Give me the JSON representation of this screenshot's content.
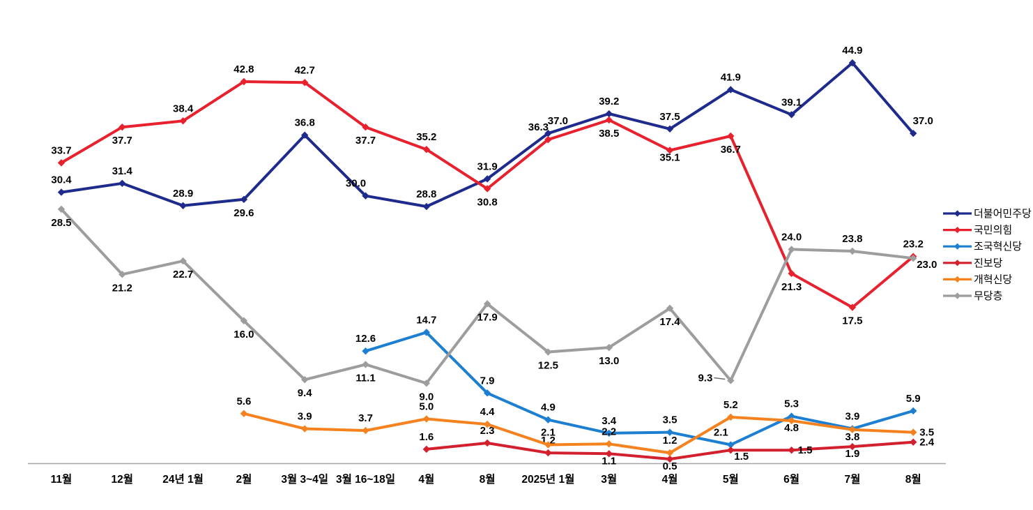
{
  "chart_data": {
    "type": "line",
    "title": "",
    "xlabel": "",
    "ylabel": "",
    "ylim": [
      0,
      47
    ],
    "grid": false,
    "legend_position": "right",
    "axis_color": "#A6A6A6",
    "label_color": "#000000",
    "categories": [
      "11월",
      "12월",
      "24년 1월",
      "2월",
      "3월 3~4일",
      "3월 16~18일",
      "4월",
      "8월",
      "2025년 1월",
      "3월",
      "4월",
      "5월",
      "6월",
      "7월",
      "8월"
    ],
    "series": [
      {
        "name": "더불어민주당",
        "color": "#1E2B8C",
        "values": [
          30.4,
          31.4,
          28.9,
          29.6,
          36.8,
          30.0,
          28.8,
          31.9,
          37.0,
          39.2,
          37.5,
          41.9,
          39.1,
          44.9,
          37.0
        ],
        "label_pos": [
          "a",
          "a",
          "a",
          "b",
          "a",
          "al",
          "a",
          "a",
          "ar",
          "a",
          "a",
          "a",
          "a",
          "a",
          "ar"
        ]
      },
      {
        "name": "국민의힘",
        "color": "#E8212E",
        "values": [
          33.7,
          37.7,
          38.4,
          42.8,
          42.7,
          37.7,
          35.2,
          30.8,
          36.3,
          38.5,
          35.1,
          36.7,
          21.3,
          17.5,
          23.2
        ],
        "label_pos": [
          "a",
          "b",
          "a",
          "a",
          "a",
          "b",
          "a",
          "b",
          "al",
          "b",
          "bs",
          "b",
          "b",
          "b",
          "a"
        ]
      },
      {
        "name": "조국혁신당",
        "color": "#1C7FD1",
        "values": [
          null,
          null,
          null,
          null,
          null,
          12.6,
          14.7,
          7.9,
          4.9,
          3.4,
          3.5,
          2.1,
          5.3,
          3.9,
          5.9
        ],
        "label_pos": [
          null,
          null,
          null,
          null,
          null,
          "a",
          "a",
          "a",
          "a",
          "a",
          "a",
          "al",
          "a",
          "a",
          "a"
        ]
      },
      {
        "name": "진보당",
        "color": "#D2202E",
        "values": [
          null,
          null,
          null,
          null,
          null,
          null,
          1.6,
          2.3,
          1.2,
          1.1,
          0.5,
          1.5,
          1.5,
          1.9,
          2.4
        ],
        "label_pos": [
          null,
          null,
          null,
          null,
          null,
          null,
          "a",
          "a",
          "a",
          "bs",
          "bs",
          "br",
          "r",
          "bs",
          "r"
        ]
      },
      {
        "name": "개혁신당",
        "color": "#F5821F",
        "values": [
          null,
          null,
          null,
          5.6,
          3.9,
          3.7,
          5.0,
          4.4,
          2.1,
          2.2,
          1.2,
          5.2,
          4.8,
          3.8,
          3.5
        ],
        "label_pos": [
          null,
          null,
          null,
          "a",
          "a",
          "a",
          "a",
          "a",
          "a",
          "a",
          "a",
          "a",
          "bs",
          "bs",
          "r"
        ]
      },
      {
        "name": "무당층",
        "color": "#9D9D9D",
        "values": [
          28.5,
          21.2,
          22.7,
          16.0,
          9.4,
          11.1,
          9.0,
          17.9,
          12.5,
          13.0,
          17.4,
          9.3,
          24.0,
          23.8,
          23.0
        ],
        "label_pos": [
          "b",
          "b",
          "b",
          "b",
          "b",
          "b",
          "b",
          "b",
          "b",
          "b",
          "b",
          "ld",
          "a",
          "a",
          "br"
        ]
      }
    ]
  }
}
